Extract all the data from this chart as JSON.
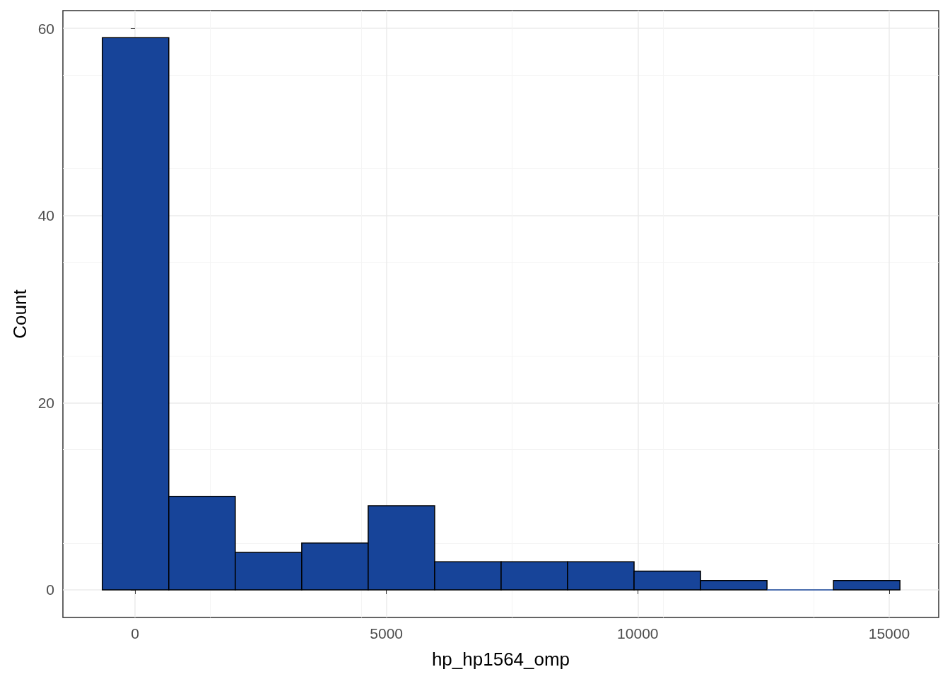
{
  "chart_data": {
    "type": "histogram",
    "xlabel": "hp_hp1564_omp",
    "ylabel": "Count",
    "bins": [
      -650,
      672,
      1994,
      3316,
      4638,
      5960,
      7282,
      8604,
      9926,
      11248,
      12570,
      13892,
      15214
    ],
    "values": [
      59,
      10,
      4,
      5,
      9,
      3,
      3,
      3,
      2,
      1,
      0,
      1
    ],
    "color": "#174499",
    "xlim": [
      -1434,
      15985
    ],
    "xticks": [
      0,
      5000,
      10000,
      15000
    ],
    "ylim": [
      -2.95,
      61.9
    ],
    "yticks": [
      0,
      20,
      40,
      60
    ],
    "grid": true
  }
}
